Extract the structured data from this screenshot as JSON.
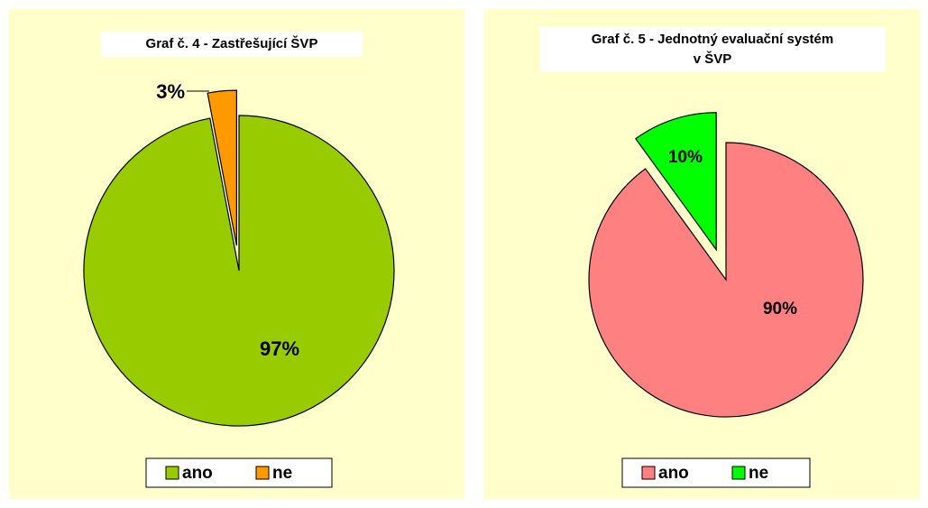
{
  "chart_data": [
    {
      "type": "pie",
      "title": [
        "Graf č. 4 - Zastřešující ŠVP"
      ],
      "categories": [
        "ano",
        "ne"
      ],
      "values": [
        97,
        3
      ],
      "value_labels": [
        "97%",
        "3%"
      ],
      "colors": [
        "#99cc00",
        "#ff9900"
      ]
    },
    {
      "type": "pie",
      "title": [
        "Graf č. 5 - Jednotný evaluační systém",
        "v ŠVP"
      ],
      "categories": [
        "ano",
        "ne"
      ],
      "values": [
        90,
        10
      ],
      "value_labels": [
        "90%",
        "10%"
      ],
      "colors": [
        "#ff8080",
        "#00ff00"
      ]
    }
  ]
}
